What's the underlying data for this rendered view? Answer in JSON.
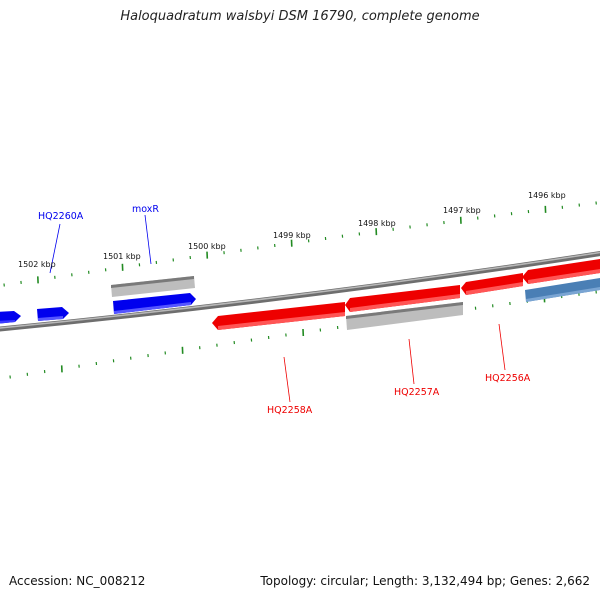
{
  "title": "Haloquadratum walsbyi DSM 16790, complete genome",
  "footer": {
    "accession": "Accession: NC_008212",
    "topology": "Topology: circular; Length: 3,132,494 bp; Genes: 2,662"
  },
  "colors": {
    "forward_gene": "#0000ee",
    "reverse_gene": "#ee0000",
    "pseudo_gray": "#b0b0b0",
    "steel_blue": "#4a7fb5",
    "tick_green": "#228b22",
    "backbone": "#808080"
  },
  "scale_ticks": [
    {
      "label": "1502 kbp"
    },
    {
      "label": "1501 kbp"
    },
    {
      "label": "1500 kbp"
    },
    {
      "label": "1499 kbp"
    },
    {
      "label": "1498 kbp"
    },
    {
      "label": "1497 kbp"
    },
    {
      "label": "1496 kbp"
    }
  ],
  "gene_labels": [
    {
      "text": "HQ2260A",
      "color": "#0000ee"
    },
    {
      "text": "moxR",
      "color": "#0000ee"
    },
    {
      "text": "HQ2258A",
      "color": "#ee0000"
    },
    {
      "text": "HQ2257A",
      "color": "#ee0000"
    },
    {
      "text": "HQ2256A",
      "color": "#ee0000"
    }
  ]
}
